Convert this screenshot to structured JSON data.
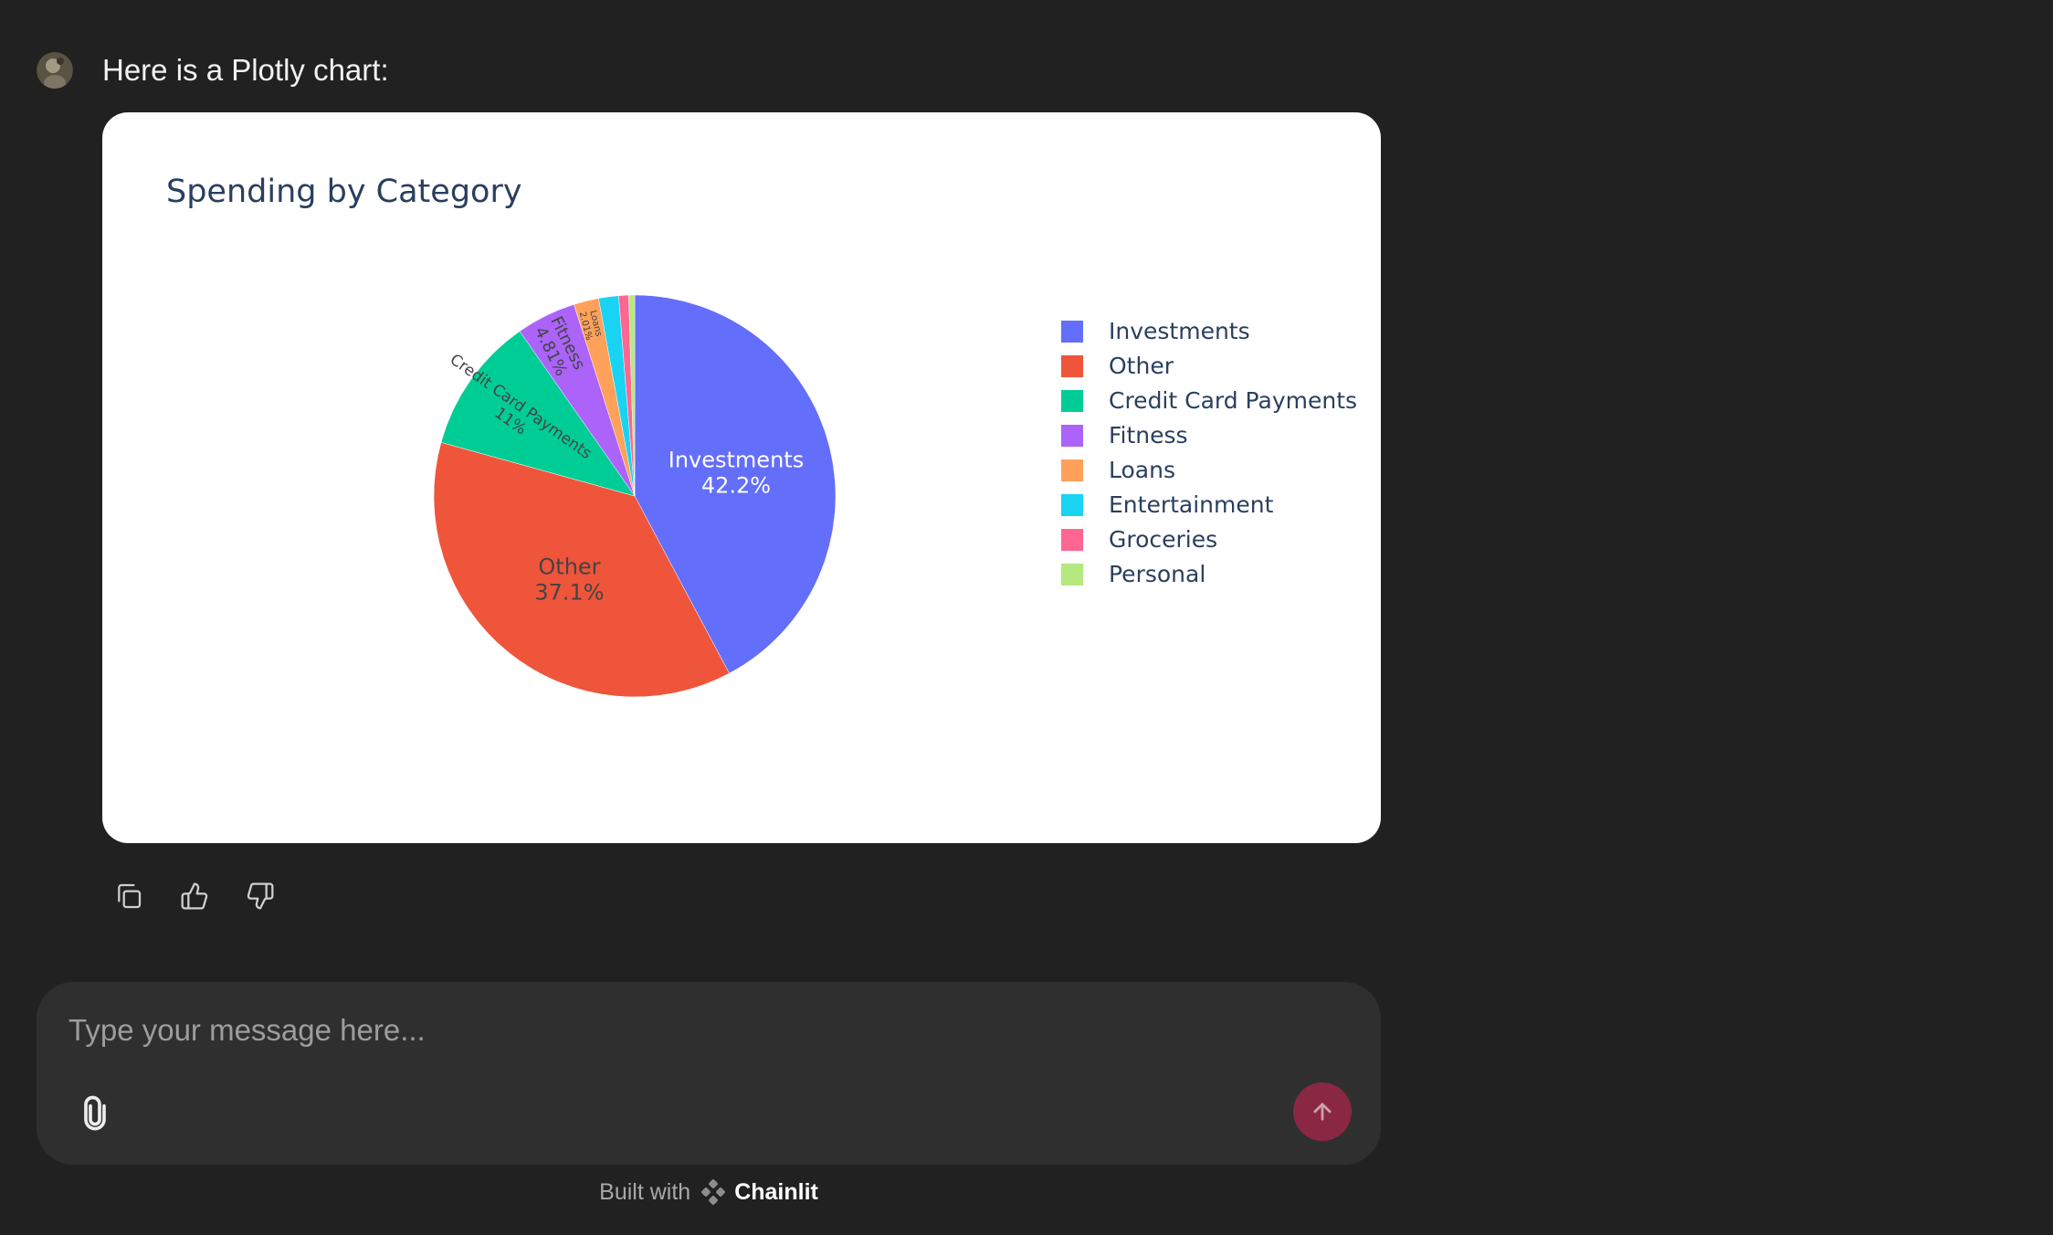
{
  "message": {
    "text": "Here is a Plotly chart:"
  },
  "chart_data": {
    "type": "pie",
    "title": "Spending by Category",
    "categories": [
      "Investments",
      "Other",
      "Credit Card Payments",
      "Fitness",
      "Loans",
      "Entertainment",
      "Groceries",
      "Personal"
    ],
    "values": [
      42.2,
      37.1,
      11.0,
      4.81,
      2.01,
      1.6,
      0.8,
      0.48
    ],
    "slice_labels": [
      "42.2%",
      "37.1%",
      "11%",
      "4.81%",
      "2.01%",
      "",
      "",
      ""
    ],
    "colors": [
      "#636efa",
      "#EF553B",
      "#00cc96",
      "#ab63fa",
      "#FFA15A",
      "#19d3f3",
      "#FF6692",
      "#B6E880"
    ],
    "legend": "right"
  },
  "actions": {
    "copy": "copy-icon",
    "like": "thumbs-up-icon",
    "dislike": "thumbs-down-icon"
  },
  "composer": {
    "placeholder": "Type your message here...",
    "attach_icon": "paperclip-icon",
    "send_icon": "arrow-up-icon",
    "send_color": "#8a2742"
  },
  "footer": {
    "prefix": "Built with",
    "brand": "Chainlit"
  }
}
